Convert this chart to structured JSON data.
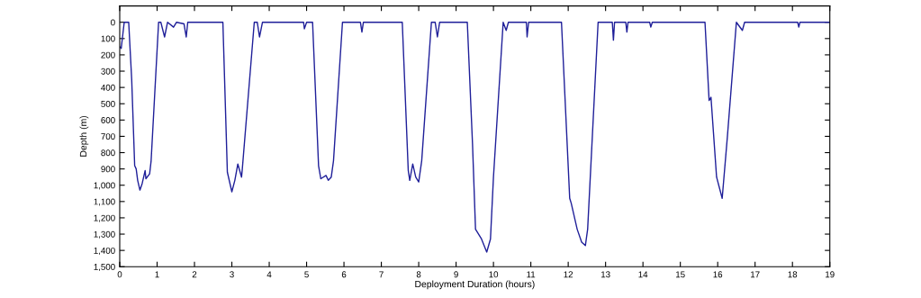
{
  "chart_data": {
    "type": "line",
    "xlabel": "Deployment Duration (hours)",
    "ylabel": "Depth (m)",
    "x": [
      0,
      0.04,
      0.12,
      0.24,
      0.32,
      0.4,
      0.44,
      0.48,
      0.54,
      0.6,
      0.68,
      0.7,
      0.8,
      0.84,
      1.04,
      1.1,
      1.2,
      1.28,
      1.44,
      1.52,
      1.72,
      1.78,
      1.82,
      2.76,
      2.88,
      3.0,
      3.08,
      3.16,
      3.26,
      3.28,
      3.6,
      3.68,
      3.74,
      3.82,
      4.92,
      4.94,
      5.0,
      5.16,
      5.32,
      5.38,
      5.52,
      5.58,
      5.66,
      5.72,
      5.96,
      6.44,
      6.48,
      6.52,
      7.56,
      7.72,
      7.76,
      7.84,
      7.92,
      8.0,
      8.08,
      8.34,
      8.44,
      8.5,
      8.56,
      9.3,
      9.44,
      9.52,
      9.68,
      9.82,
      9.92,
      10.0,
      10.26,
      10.34,
      10.4,
      10.88,
      10.9,
      10.94,
      11.82,
      12.04,
      12.08,
      12.24,
      12.36,
      12.46,
      12.52,
      12.8,
      13.18,
      13.21,
      13.24,
      13.54,
      13.57,
      13.6,
      14.18,
      14.21,
      14.25,
      15.66,
      15.77,
      15.82,
      15.97,
      16.12,
      16.26,
      16.5,
      16.66,
      16.72,
      18.14,
      18.17,
      18.2,
      19
    ],
    "values": [
      150,
      160,
      0,
      0,
      350,
      880,
      900,
      970,
      1030,
      990,
      910,
      960,
      930,
      850,
      0,
      0,
      90,
      0,
      30,
      0,
      10,
      90,
      0,
      0,
      920,
      1040,
      970,
      870,
      950,
      900,
      0,
      0,
      90,
      0,
      0,
      40,
      0,
      0,
      880,
      960,
      940,
      970,
      950,
      850,
      0,
      0,
      60,
      0,
      0,
      910,
      970,
      870,
      950,
      980,
      850,
      0,
      0,
      90,
      0,
      0,
      750,
      1270,
      1330,
      1410,
      1330,
      950,
      0,
      50,
      0,
      0,
      90,
      0,
      0,
      1080,
      1110,
      1270,
      1350,
      1370,
      1270,
      0,
      0,
      110,
      0,
      0,
      60,
      0,
      0,
      30,
      0,
      0,
      480,
      460,
      950,
      1080,
      700,
      0,
      50,
      0,
      0,
      30,
      0,
      0
    ],
    "color": "#1f1f99",
    "xlim": [
      0,
      19
    ],
    "xticks": [
      0,
      1,
      2,
      3,
      4,
      5,
      6,
      7,
      8,
      9,
      10,
      11,
      12,
      13,
      14,
      15,
      16,
      17,
      18,
      19
    ],
    "ylim": [
      1500,
      -100
    ],
    "yticks": [
      0,
      100,
      200,
      300,
      400,
      500,
      600,
      700,
      800,
      900,
      {
        "value": 1000,
        "label": "1,000"
      },
      {
        "value": 1100,
        "label": "1,100"
      },
      {
        "value": 1200,
        "label": "1,200"
      },
      {
        "value": 1300,
        "label": "1,300"
      },
      {
        "value": 1400,
        "label": "1,400"
      },
      {
        "value": 1500,
        "label": "1,500"
      }
    ],
    "grid": false
  }
}
